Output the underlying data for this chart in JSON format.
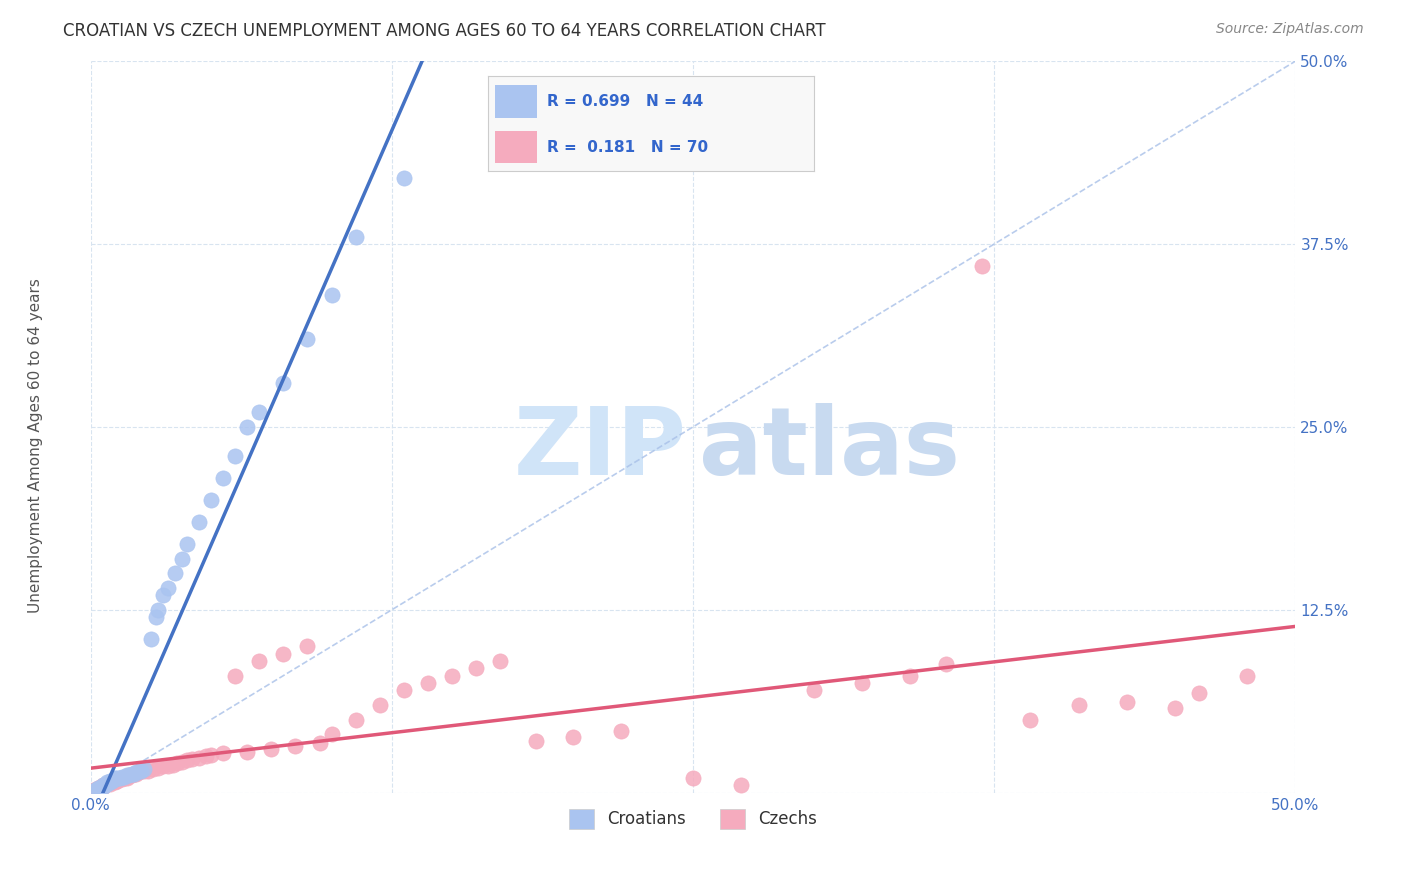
{
  "title": "CROATIAN VS CZECH UNEMPLOYMENT AMONG AGES 60 TO 64 YEARS CORRELATION CHART",
  "source": "Source: ZipAtlas.com",
  "ylabel": "Unemployment Among Ages 60 to 64 years",
  "xlim": [
    0.0,
    0.5
  ],
  "ylim": [
    0.0,
    0.5
  ],
  "R_croatian": 0.699,
  "N_croatian": 44,
  "R_czech": 0.181,
  "N_czech": 70,
  "croatian_color": "#aac4f0",
  "czech_color": "#f5abbe",
  "trendline_croatian_color": "#4472c4",
  "trendline_czech_color": "#e05878",
  "diagonal_color": "#a8c0e8",
  "background_color": "#ffffff",
  "grid_color": "#d8e4f0",
  "tick_color": "#4472c4",
  "title_color": "#333333",
  "source_color": "#888888",
  "watermark_zip_color": "#d0e4f8",
  "watermark_atlas_color": "#c8daf0",
  "croatian_x": [
    0.002,
    0.003,
    0.004,
    0.005,
    0.005,
    0.006,
    0.007,
    0.007,
    0.008,
    0.008,
    0.009,
    0.01,
    0.01,
    0.011,
    0.012,
    0.013,
    0.014,
    0.015,
    0.016,
    0.017,
    0.018,
    0.019,
    0.02,
    0.021,
    0.022,
    0.025,
    0.027,
    0.028,
    0.03,
    0.032,
    0.035,
    0.038,
    0.04,
    0.045,
    0.05,
    0.055,
    0.06,
    0.065,
    0.07,
    0.08,
    0.09,
    0.1,
    0.11,
    0.13
  ],
  "croatian_y": [
    0.002,
    0.003,
    0.003,
    0.004,
    0.005,
    0.005,
    0.006,
    0.007,
    0.007,
    0.008,
    0.008,
    0.009,
    0.01,
    0.01,
    0.01,
    0.011,
    0.011,
    0.012,
    0.012,
    0.013,
    0.013,
    0.014,
    0.015,
    0.015,
    0.016,
    0.105,
    0.12,
    0.125,
    0.135,
    0.14,
    0.15,
    0.16,
    0.17,
    0.185,
    0.2,
    0.215,
    0.23,
    0.25,
    0.26,
    0.28,
    0.31,
    0.34,
    0.38,
    0.42
  ],
  "czech_x": [
    0.001,
    0.002,
    0.003,
    0.004,
    0.005,
    0.005,
    0.006,
    0.007,
    0.008,
    0.009,
    0.01,
    0.01,
    0.011,
    0.012,
    0.013,
    0.014,
    0.015,
    0.015,
    0.016,
    0.017,
    0.018,
    0.019,
    0.02,
    0.022,
    0.024,
    0.026,
    0.028,
    0.03,
    0.032,
    0.034,
    0.036,
    0.038,
    0.04,
    0.042,
    0.045,
    0.048,
    0.05,
    0.055,
    0.06,
    0.065,
    0.07,
    0.075,
    0.08,
    0.085,
    0.09,
    0.095,
    0.1,
    0.11,
    0.12,
    0.13,
    0.14,
    0.15,
    0.16,
    0.17,
    0.185,
    0.2,
    0.22,
    0.25,
    0.27,
    0.3,
    0.32,
    0.34,
    0.355,
    0.37,
    0.39,
    0.41,
    0.43,
    0.45,
    0.46,
    0.48
  ],
  "czech_y": [
    0.002,
    0.002,
    0.003,
    0.004,
    0.004,
    0.005,
    0.005,
    0.006,
    0.006,
    0.007,
    0.007,
    0.008,
    0.008,
    0.009,
    0.009,
    0.01,
    0.01,
    0.011,
    0.012,
    0.012,
    0.013,
    0.013,
    0.014,
    0.015,
    0.015,
    0.016,
    0.017,
    0.018,
    0.018,
    0.019,
    0.02,
    0.021,
    0.022,
    0.023,
    0.024,
    0.025,
    0.026,
    0.027,
    0.08,
    0.028,
    0.09,
    0.03,
    0.095,
    0.032,
    0.1,
    0.034,
    0.04,
    0.05,
    0.06,
    0.07,
    0.075,
    0.08,
    0.085,
    0.09,
    0.035,
    0.038,
    0.042,
    0.01,
    0.005,
    0.07,
    0.075,
    0.08,
    0.088,
    0.36,
    0.05,
    0.06,
    0.062,
    0.058,
    0.068,
    0.08
  ],
  "title_fontsize": 12,
  "label_fontsize": 11,
  "tick_fontsize": 11,
  "legend_fontsize": 12
}
